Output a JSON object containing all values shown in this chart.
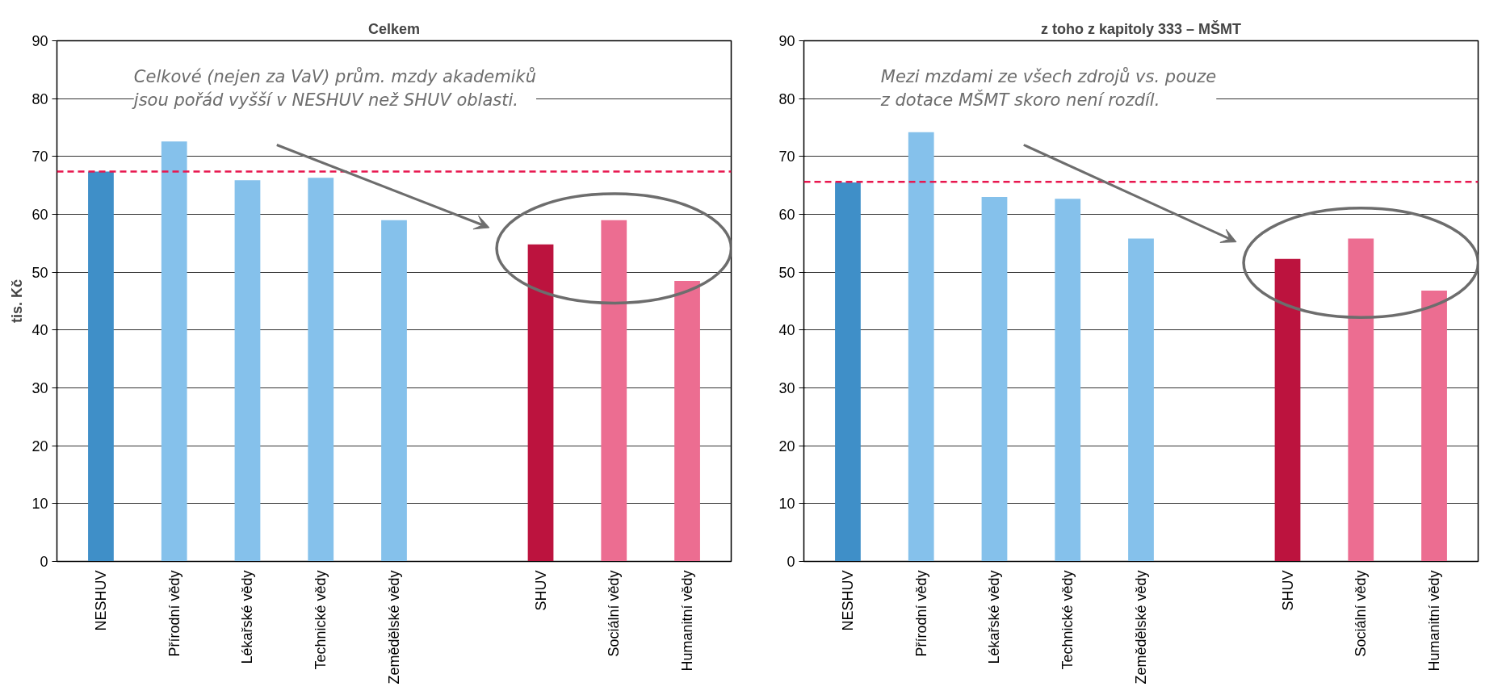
{
  "chart_data": [
    {
      "type": "bar",
      "title": "Celkem",
      "ylabel": "tis. Kč",
      "categories": [
        "NESHUV",
        "Přírodní vědy",
        "Lékařské vědy",
        "Technické vědy",
        "Zemědělské vědy",
        null,
        "SHUV",
        "Sociální vědy",
        "Humanitní vědy"
      ],
      "values": [
        67.4,
        72.6,
        65.9,
        66.3,
        59.0,
        null,
        54.8,
        59.0,
        48.5
      ],
      "colors": [
        "#3f8fc8",
        "#85c1eb",
        "#85c1eb",
        "#85c1eb",
        "#85c1eb",
        "#85c1eb",
        "#bc133e",
        "#ec6d91",
        "#ec6d91"
      ],
      "ylim": [
        0,
        90
      ],
      "yticks": [
        0,
        10,
        20,
        30,
        40,
        50,
        60,
        70,
        80,
        90
      ],
      "grid": "y",
      "ref_lines": [
        {
          "axis": "y",
          "value": 67.4,
          "color": "#e8174f",
          "line_style": "dashed"
        }
      ],
      "annotations": [
        "Celkové (nejen za VaV) prům. mzdy akademiků\njsou pořád vyšší v NESHUV než SHUV oblasti."
      ]
    },
    {
      "type": "bar",
      "title": "z toho z kapitoly 333 – MŠMT",
      "categories": [
        "NESHUV",
        "Přírodní vědy",
        "Lékařské vědy",
        "Technické vědy",
        "Zemědělské vědy",
        null,
        "SHUV",
        "Sociální vědy",
        "Humanitní vědy"
      ],
      "values": [
        65.5,
        74.2,
        63.0,
        62.7,
        55.8,
        null,
        52.3,
        55.8,
        46.8
      ],
      "colors": [
        "#3f8fc8",
        "#85c1eb",
        "#85c1eb",
        "#85c1eb",
        "#85c1eb",
        "#85c1eb",
        "#bc133e",
        "#ec6d91",
        "#ec6d91"
      ],
      "ylim": [
        0,
        90
      ],
      "yticks": [
        0,
        10,
        20,
        30,
        40,
        50,
        60,
        70,
        80,
        90
      ],
      "grid": "y",
      "ref_lines": [
        {
          "axis": "y",
          "value": 65.6,
          "color": "#e8174f",
          "line_style": "dashed"
        }
      ],
      "annotations": [
        "Mezi mzdami ze všech zdrojů vs. pouze\nz dotace MŠMT skoro není rozdíl."
      ]
    }
  ]
}
